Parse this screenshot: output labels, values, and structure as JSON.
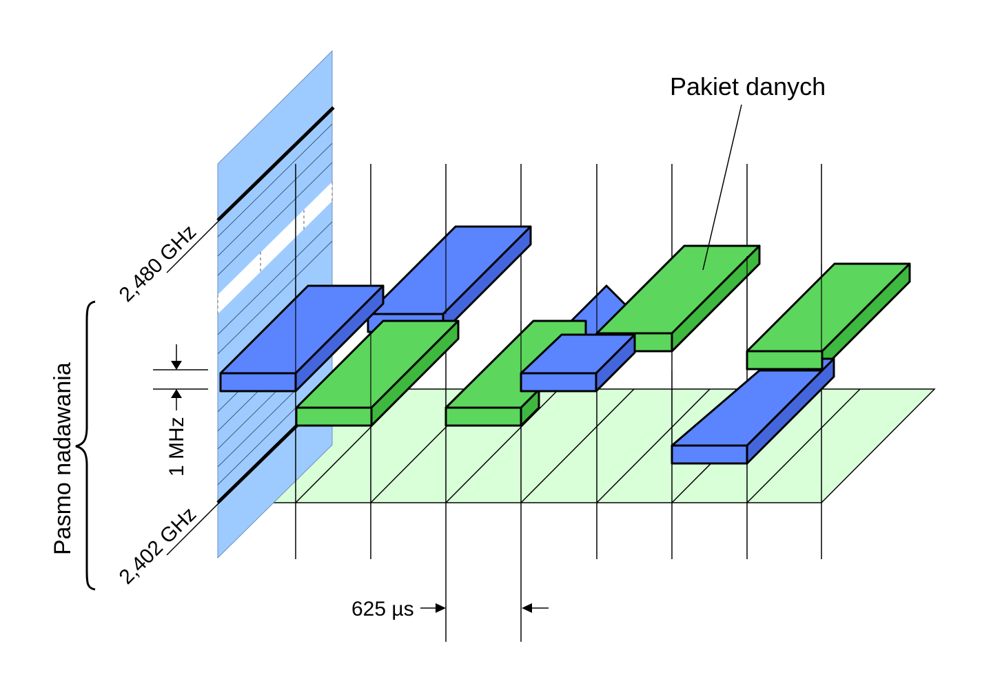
{
  "labels": {
    "freq_high": "2,480 GHz",
    "freq_low": "2,402 GHz",
    "band": "Pasmo nadawania",
    "channel_width": "1 MHz",
    "time_slot": "625 µs",
    "packet": "Pakiet danych"
  },
  "colors": {
    "blue_packet": "#5B84FF",
    "green_packet": "#5CD65C",
    "freq_plane": "#9ECBFF",
    "time_plane": "#D8FFD8"
  },
  "packets": [
    {
      "slot": 0,
      "color": "blue",
      "channel": "high"
    },
    {
      "slot": 1,
      "color": "green",
      "channel": "low"
    },
    {
      "slot": 2,
      "color": "blue",
      "channel": "highest"
    },
    {
      "slot": 3,
      "color": "green",
      "channel": "low"
    },
    {
      "slot": 4,
      "color": "blue",
      "channel": "high"
    },
    {
      "slot": 5,
      "color": "green",
      "channel": "highest"
    },
    {
      "slot": 6,
      "color": "blue",
      "channel": "lowest"
    },
    {
      "slot": 7,
      "color": "green",
      "channel": "highest"
    }
  ]
}
